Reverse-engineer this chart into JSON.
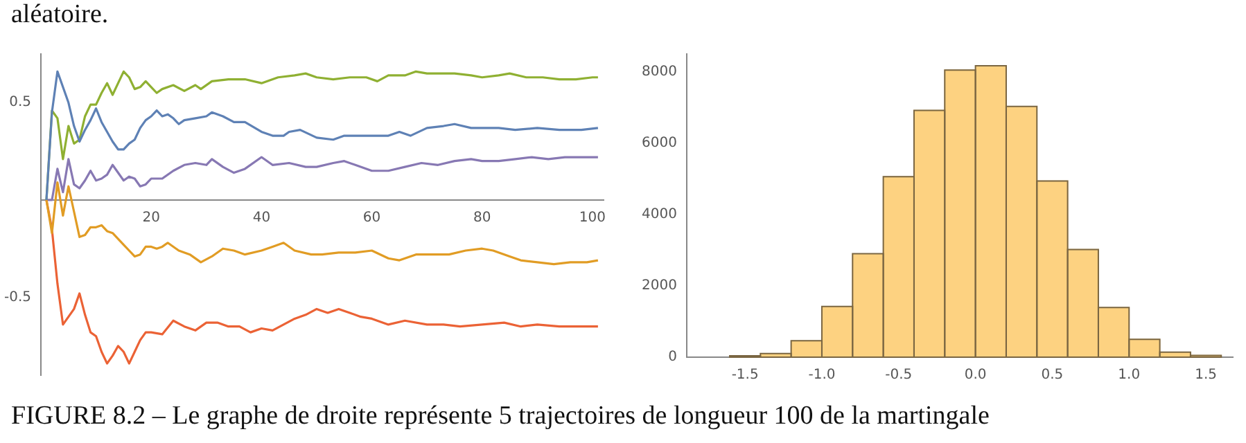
{
  "chart_data": [
    {
      "type": "line",
      "marker": "none",
      "grid": false,
      "legend": false,
      "annotations": [
        "aléatoire.",
        "FIGURE 8.2 – Le graphe de droite représente 5 trajectoires de longueur 100 de la martingale"
      ],
      "xlim": [
        0,
        102
      ],
      "xticks": [
        20,
        40,
        60,
        80,
        100
      ],
      "ylim": [
        -0.9,
        0.75
      ],
      "yticks": [
        -0.5,
        0.5
      ],
      "series": [
        {
          "color": "#5e81b5",
          "x": [
            1,
            2,
            3,
            4,
            5,
            6,
            7,
            8,
            9,
            10,
            11,
            12,
            13,
            14,
            15,
            16,
            17,
            18,
            19,
            20,
            21,
            22,
            23,
            24,
            25,
            26,
            28,
            30,
            31,
            33,
            35,
            37,
            40,
            42,
            44,
            45,
            47,
            50,
            53,
            55,
            58,
            60,
            63,
            65,
            67,
            70,
            73,
            75,
            78,
            80,
            83,
            86,
            90,
            94,
            98,
            101
          ],
          "values": [
            0,
            0.45,
            0.66,
            0.58,
            0.5,
            0.38,
            0.3,
            0.36,
            0.41,
            0.47,
            0.4,
            0.35,
            0.3,
            0.26,
            0.26,
            0.29,
            0.31,
            0.37,
            0.41,
            0.43,
            0.46,
            0.43,
            0.44,
            0.42,
            0.39,
            0.41,
            0.42,
            0.43,
            0.45,
            0.43,
            0.4,
            0.4,
            0.35,
            0.33,
            0.33,
            0.35,
            0.36,
            0.32,
            0.31,
            0.33,
            0.33,
            0.33,
            0.33,
            0.35,
            0.33,
            0.37,
            0.38,
            0.39,
            0.37,
            0.37,
            0.37,
            0.36,
            0.37,
            0.36,
            0.36,
            0.37
          ]
        },
        {
          "color": "#e19c24",
          "x": [
            1,
            2,
            3,
            4,
            5,
            6,
            7,
            8,
            9,
            10,
            11,
            12,
            13,
            14,
            15,
            16,
            17,
            18,
            19,
            20,
            21,
            22,
            23,
            25,
            27,
            29,
            31,
            33,
            35,
            37,
            40,
            42,
            44,
            46,
            49,
            51,
            54,
            57,
            60,
            63,
            65,
            68,
            71,
            74,
            77,
            80,
            82,
            85,
            87,
            90,
            93,
            96,
            99,
            101
          ],
          "values": [
            0,
            -0.17,
            0.09,
            -0.08,
            0.07,
            -0.06,
            -0.19,
            -0.18,
            -0.14,
            -0.14,
            -0.13,
            -0.16,
            -0.17,
            -0.2,
            -0.23,
            -0.26,
            -0.29,
            -0.28,
            -0.24,
            -0.24,
            -0.25,
            -0.24,
            -0.22,
            -0.26,
            -0.28,
            -0.32,
            -0.29,
            -0.25,
            -0.26,
            -0.28,
            -0.26,
            -0.24,
            -0.22,
            -0.26,
            -0.28,
            -0.28,
            -0.27,
            -0.27,
            -0.26,
            -0.3,
            -0.31,
            -0.28,
            -0.28,
            -0.28,
            -0.26,
            -0.25,
            -0.26,
            -0.29,
            -0.31,
            -0.32,
            -0.33,
            -0.32,
            -0.32,
            -0.31
          ]
        },
        {
          "color": "#8fb032",
          "x": [
            1,
            2,
            3,
            4,
            5,
            6,
            7,
            8,
            9,
            10,
            11,
            12,
            13,
            14,
            15,
            16,
            17,
            18,
            19,
            20,
            21,
            22,
            24,
            26,
            28,
            29,
            31,
            34,
            37,
            40,
            43,
            46,
            48,
            50,
            53,
            56,
            59,
            61,
            63,
            66,
            68,
            70,
            75,
            78,
            80,
            83,
            85,
            88,
            91,
            94,
            97,
            100,
            101
          ],
          "values": [
            0,
            0.46,
            0.42,
            0.21,
            0.38,
            0.29,
            0.31,
            0.43,
            0.49,
            0.49,
            0.55,
            0.6,
            0.54,
            0.6,
            0.66,
            0.63,
            0.57,
            0.58,
            0.61,
            0.58,
            0.55,
            0.57,
            0.59,
            0.56,
            0.59,
            0.57,
            0.61,
            0.62,
            0.62,
            0.6,
            0.63,
            0.64,
            0.65,
            0.63,
            0.62,
            0.63,
            0.63,
            0.61,
            0.64,
            0.64,
            0.66,
            0.65,
            0.65,
            0.64,
            0.63,
            0.64,
            0.65,
            0.63,
            0.63,
            0.62,
            0.62,
            0.63,
            0.63
          ]
        },
        {
          "color": "#eb6235",
          "x": [
            1,
            2,
            3,
            4,
            5,
            6,
            7,
            8,
            9,
            10,
            11,
            12,
            13,
            14,
            15,
            16,
            17,
            18,
            19,
            20,
            22,
            24,
            26,
            28,
            30,
            32,
            34,
            36,
            38,
            40,
            42,
            44,
            46,
            48,
            50,
            52,
            54,
            56,
            58,
            60,
            63,
            66,
            70,
            73,
            76,
            80,
            84,
            87,
            90,
            94,
            98,
            101
          ],
          "values": [
            0,
            -0.15,
            -0.43,
            -0.64,
            -0.6,
            -0.56,
            -0.48,
            -0.59,
            -0.68,
            -0.7,
            -0.78,
            -0.84,
            -0.8,
            -0.75,
            -0.78,
            -0.84,
            -0.78,
            -0.72,
            -0.68,
            -0.68,
            -0.69,
            -0.62,
            -0.65,
            -0.67,
            -0.63,
            -0.63,
            -0.65,
            -0.65,
            -0.68,
            -0.66,
            -0.67,
            -0.64,
            -0.61,
            -0.59,
            -0.56,
            -0.58,
            -0.56,
            -0.58,
            -0.6,
            -0.61,
            -0.64,
            -0.62,
            -0.64,
            -0.64,
            -0.65,
            -0.64,
            -0.63,
            -0.65,
            -0.64,
            -0.65,
            -0.65,
            -0.65
          ]
        },
        {
          "color": "#8778b3",
          "x": [
            1,
            2,
            3,
            4,
            5,
            6,
            7,
            8,
            9,
            10,
            11,
            12,
            13,
            14,
            15,
            16,
            17,
            18,
            19,
            20,
            22,
            24,
            26,
            28,
            30,
            31,
            33,
            35,
            37,
            40,
            42,
            45,
            48,
            50,
            53,
            55,
            57,
            60,
            63,
            66,
            69,
            72,
            75,
            78,
            80,
            83,
            86,
            89,
            92,
            95,
            98,
            101
          ],
          "values": [
            0,
            0,
            0.16,
            0.04,
            0.21,
            0.08,
            0.06,
            0.1,
            0.15,
            0.1,
            0.11,
            0.13,
            0.18,
            0.14,
            0.1,
            0.12,
            0.11,
            0.07,
            0.08,
            0.11,
            0.11,
            0.15,
            0.18,
            0.19,
            0.18,
            0.21,
            0.17,
            0.14,
            0.16,
            0.22,
            0.18,
            0.19,
            0.17,
            0.17,
            0.19,
            0.2,
            0.18,
            0.15,
            0.15,
            0.17,
            0.19,
            0.18,
            0.2,
            0.21,
            0.2,
            0.2,
            0.21,
            0.22,
            0.21,
            0.22,
            0.22,
            0.22
          ]
        }
      ]
    },
    {
      "type": "histogram",
      "grid": false,
      "legend": false,
      "color": "#fdd281",
      "bins": [
        -1.6,
        -1.4,
        -1.2,
        -1.0,
        -0.8,
        -0.6,
        -0.4,
        -0.2,
        0,
        0.2,
        0.4,
        0.6,
        0.8,
        1.0,
        1.2,
        1.4,
        1.6
      ],
      "values": [
        40,
        100,
        460,
        1420,
        2900,
        5060,
        6920,
        8050,
        8170,
        7030,
        4940,
        3020,
        1390,
        500,
        140,
        50
      ],
      "xlim": [
        -1.88,
        1.68
      ],
      "xticks": [
        -1.5,
        {
          "value": -1.0,
          "label": "-1.0"
        },
        -0.5,
        {
          "value": 0,
          "label": "0.0"
        },
        0.5,
        {
          "value": 1.0,
          "label": "1.0"
        },
        1.5
      ],
      "ylim": [
        0,
        8500
      ],
      "yticks": [
        0,
        2000,
        4000,
        6000,
        8000
      ]
    }
  ]
}
